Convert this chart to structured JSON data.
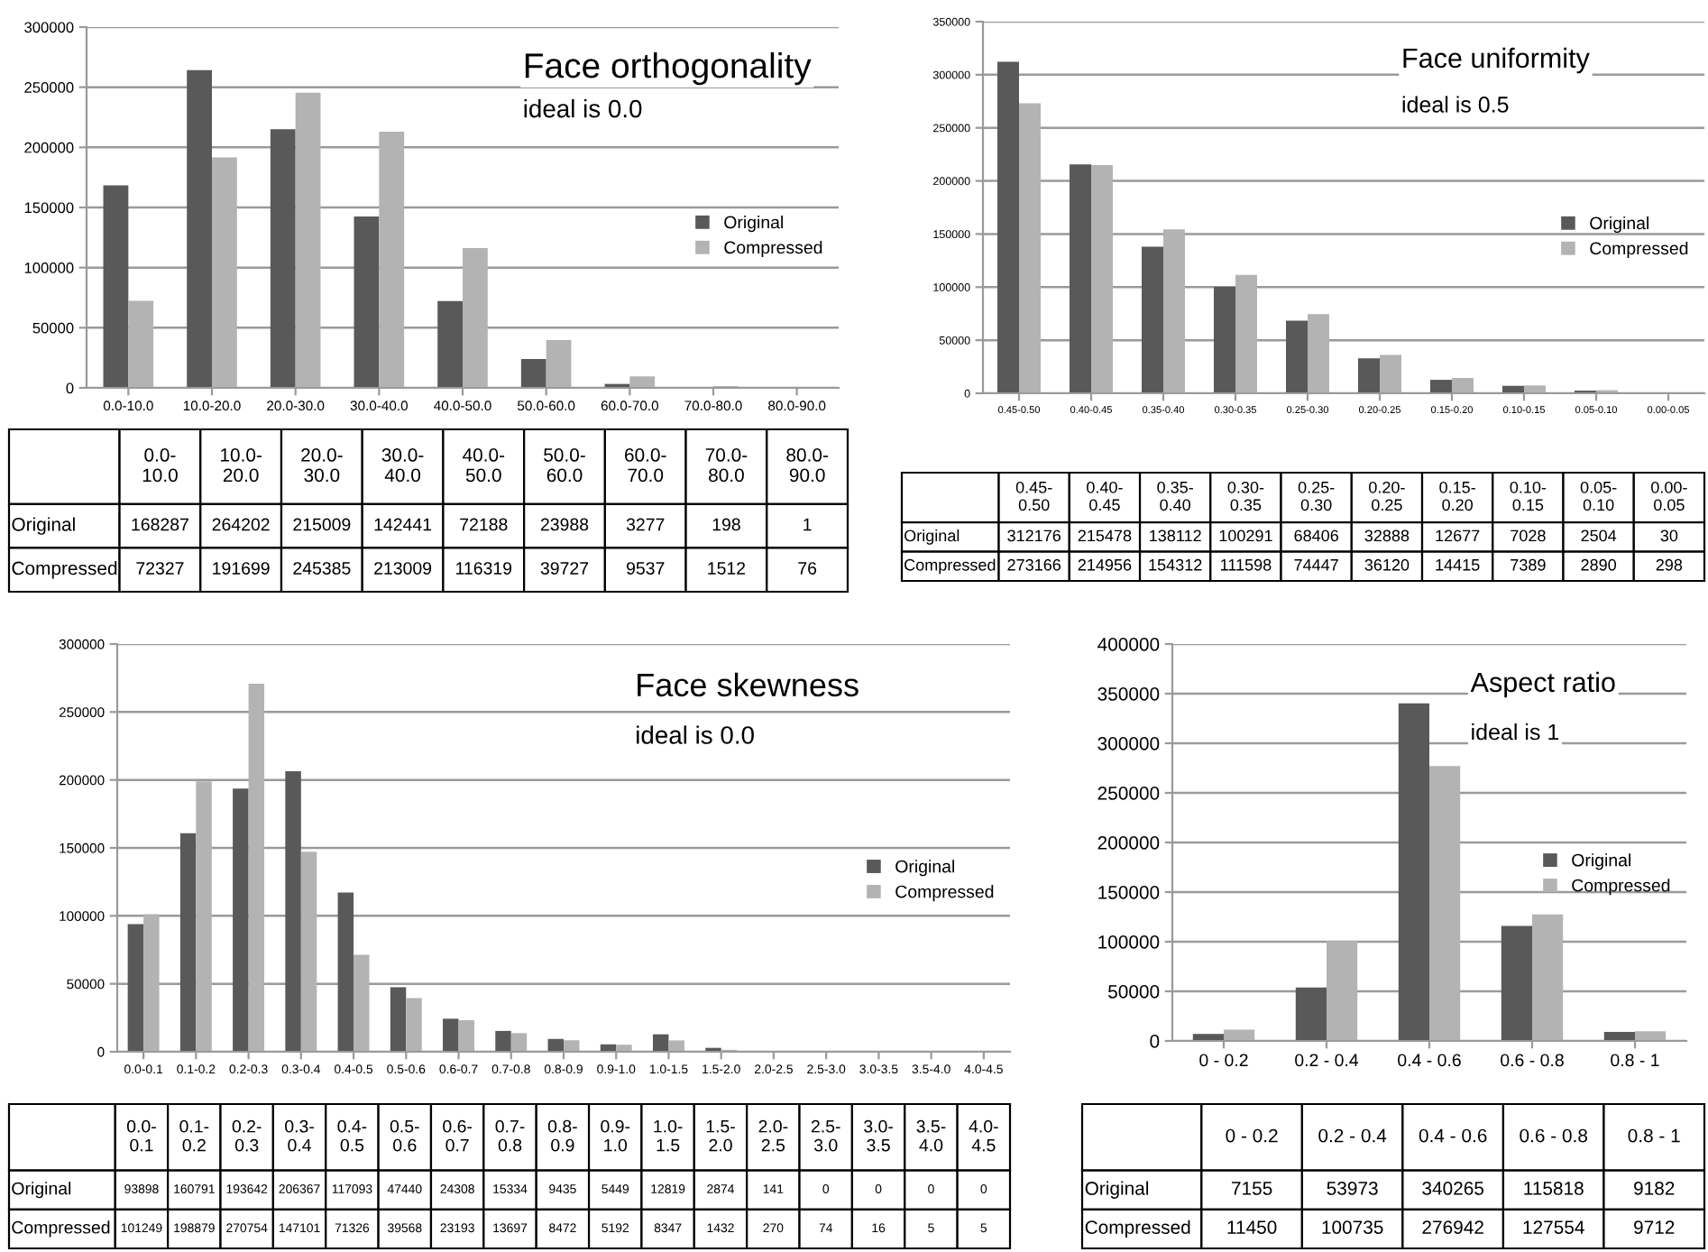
{
  "chart_data": [
    {
      "type": "bar",
      "title": "Face orthogonality",
      "subtitle": "ideal is 0.0",
      "categories": [
        "0.0-10.0",
        "10.0-20.0",
        "20.0-30.0",
        "30.0-40.0",
        "40.0-50.0",
        "50.0-60.0",
        "60.0-70.0",
        "70.0-80.0",
        "80.0-90.0"
      ],
      "series": [
        {
          "name": "Original",
          "color": "#595959",
          "values": [
            168287,
            264202,
            215009,
            142441,
            72188,
            23988,
            3277,
            198,
            1
          ]
        },
        {
          "name": "Compressed",
          "color": "#b3b3b3",
          "values": [
            72327,
            191699,
            245385,
            213009,
            116319,
            39727,
            9537,
            1512,
            76
          ]
        }
      ],
      "ylim": [
        0,
        300000
      ],
      "yticks": [
        0,
        50000,
        100000,
        150000,
        200000,
        250000,
        300000
      ],
      "grid": "y",
      "legend": "right",
      "data_labels": true
    },
    {
      "type": "bar",
      "title": "Face uniformity",
      "subtitle": "ideal is 0.5",
      "categories": [
        "0.45-0.50",
        "0.40-0.45",
        "0.35-0.40",
        "0.30-0.35",
        "0.25-0.30",
        "0.20-0.25",
        "0.15-0.20",
        "0.10-0.15",
        "0.05-0.10",
        "0.00-0.05"
      ],
      "series": [
        {
          "name": "Original",
          "color": "#595959",
          "values": [
            312176,
            215478,
            138112,
            100291,
            68406,
            32888,
            12677,
            7028,
            2504,
            30
          ]
        },
        {
          "name": "Compressed",
          "color": "#b3b3b3",
          "values": [
            273166,
            214956,
            154312,
            111598,
            74447,
            36120,
            14415,
            7389,
            2890,
            298
          ]
        }
      ],
      "ylim": [
        0,
        350000
      ],
      "yticks": [
        0,
        50000,
        100000,
        150000,
        200000,
        250000,
        300000,
        350000
      ],
      "grid": "y",
      "legend": "right",
      "data_labels": true
    },
    {
      "type": "bar",
      "title": "Face skewness",
      "subtitle": "ideal is 0.0",
      "categories": [
        "0.0-0.1",
        "0.1-0.2",
        "0.2-0.3",
        "0.3-0.4",
        "0.4-0.5",
        "0.5-0.6",
        "0.6-0.7",
        "0.7-0.8",
        "0.8-0.9",
        "0.9-1.0",
        "1.0-1.5",
        "1.5-2.0",
        "2.0-2.5",
        "2.5-3.0",
        "3.0-3.5",
        "3.5-4.0",
        "4.0-4.5"
      ],
      "series": [
        {
          "name": "Original",
          "color": "#595959",
          "values": [
            93898,
            160791,
            193642,
            206367,
            117093,
            47440,
            24308,
            15334,
            9435,
            5449,
            12819,
            2874,
            141,
            0,
            0,
            0,
            0
          ]
        },
        {
          "name": "Compressed",
          "color": "#b3b3b3",
          "values": [
            101249,
            198879,
            270754,
            147101,
            71326,
            39568,
            23193,
            13697,
            8472,
            5192,
            8347,
            1432,
            270,
            74,
            16,
            5,
            5
          ]
        }
      ],
      "ylim": [
        0,
        300000
      ],
      "yticks": [
        0,
        50000,
        100000,
        150000,
        200000,
        250000,
        300000
      ],
      "grid": "y",
      "legend": "right",
      "data_labels": true
    },
    {
      "type": "bar",
      "title": "Aspect ratio",
      "subtitle": "ideal is 1",
      "categories": [
        "0 - 0.2",
        "0.2 - 0.4",
        "0.4 - 0.6",
        "0.6 - 0.8",
        "0.8 - 1"
      ],
      "series": [
        {
          "name": "Original",
          "color": "#595959",
          "values": [
            7155,
            53973,
            340265,
            115818,
            9182
          ]
        },
        {
          "name": "Compressed",
          "color": "#b3b3b3",
          "values": [
            11450,
            100735,
            276942,
            127554,
            9712
          ]
        }
      ],
      "ylim": [
        0,
        400000
      ],
      "yticks": [
        0,
        50000,
        100000,
        150000,
        200000,
        250000,
        300000,
        350000,
        400000
      ],
      "grid": "y",
      "legend": "right",
      "data_labels": true
    }
  ]
}
